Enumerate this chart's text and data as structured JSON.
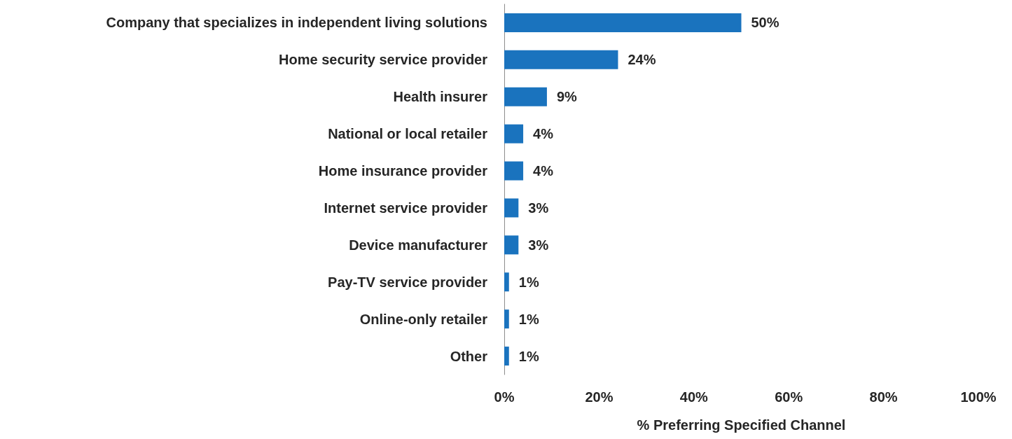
{
  "chart_data": {
    "type": "bar",
    "orientation": "horizontal",
    "xlabel": "% Preferring Specified Channel",
    "categories": [
      "Company that specializes in independent living solutions",
      "Home security service provider",
      "Health insurer",
      "National or local retailer",
      "Home insurance provider",
      "Internet service provider",
      "Device manufacturer",
      "Pay-TV service provider",
      "Online-only retailer",
      "Other"
    ],
    "values": [
      50,
      24,
      9,
      4,
      4,
      3,
      3,
      1,
      1,
      1
    ],
    "value_labels": [
      "50%",
      "24%",
      "9%",
      "4%",
      "4%",
      "3%",
      "3%",
      "1%",
      "1%",
      "1%"
    ],
    "color": "#1a73be",
    "xlim": [
      0,
      100
    ],
    "xticks": [
      {
        "value": 0,
        "label": "0%"
      },
      {
        "value": 20,
        "label": "20%"
      },
      {
        "value": 40,
        "label": "40%"
      },
      {
        "value": 60,
        "label": "60%"
      },
      {
        "value": 80,
        "label": "80%"
      },
      {
        "value": 100,
        "label": "100%"
      }
    ],
    "grid": false
  }
}
